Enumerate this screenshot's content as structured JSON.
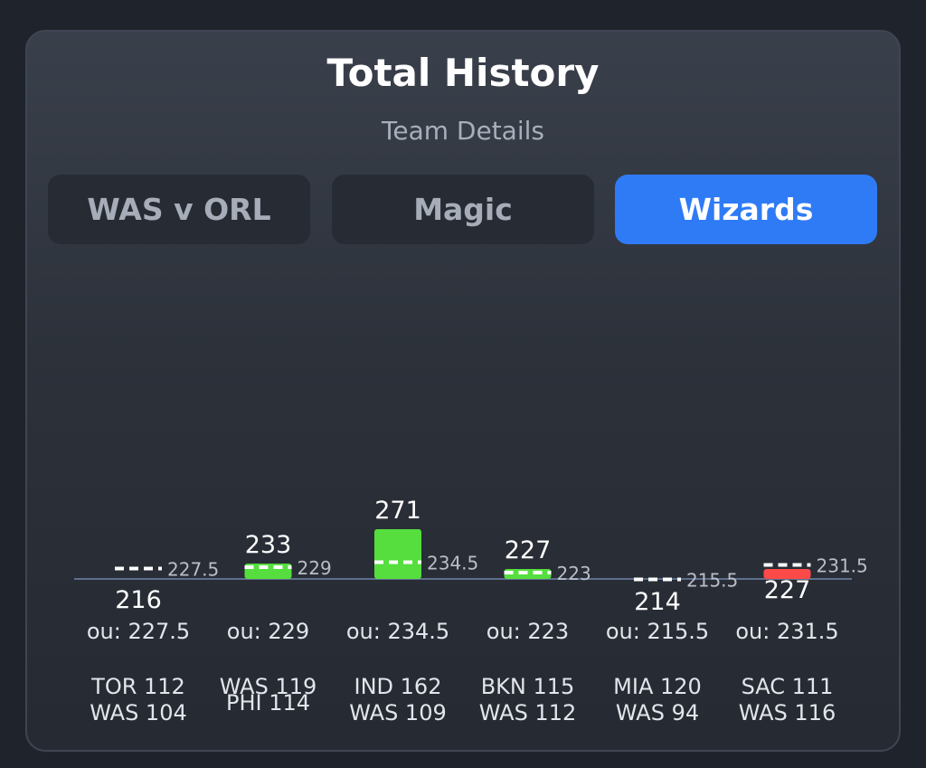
{
  "header": {
    "title": "Total History",
    "subtitle": "Team Details"
  },
  "tabs": [
    {
      "label": "WAS v ORL",
      "active": false
    },
    {
      "label": "Magic",
      "active": false
    },
    {
      "label": "Wizards",
      "active": true
    }
  ],
  "colors": {
    "over": "#55de3e",
    "under": "#fc4a49",
    "accent": "#2f7bf5"
  },
  "chart_data": {
    "type": "bar",
    "title": "",
    "xlabel": "",
    "ylabel": "",
    "ylim": [
      0,
      290
    ],
    "grid": false,
    "categories": [
      "TOR 112 WAS 104",
      "WAS 119 PHI 114",
      "IND 162 WAS 109",
      "BKN 115 WAS 112",
      "MIA 120 WAS 94",
      "SAC 111 WAS 116"
    ],
    "games": [
      {
        "line1": "TOR 112",
        "line2": "WAS 104",
        "total": 216,
        "ou": 227.5,
        "ou_label": "ou: 227.5",
        "result": "under"
      },
      {
        "line1": "WAS 119",
        "line2": "PHI 114",
        "total": 233,
        "ou": 229,
        "ou_label": "ou: 229",
        "result": "over"
      },
      {
        "line1": "IND 162",
        "line2": "WAS 109",
        "total": 271,
        "ou": 234.5,
        "ou_label": "ou: 234.5",
        "result": "over"
      },
      {
        "line1": "BKN 115",
        "line2": "WAS 112",
        "total": 227,
        "ou": 223,
        "ou_label": "ou: 223",
        "result": "over"
      },
      {
        "line1": "MIA 120",
        "line2": "WAS 94",
        "total": 214,
        "ou": 215.5,
        "ou_label": "ou: 215.5",
        "result": "under"
      },
      {
        "line1": "SAC 111",
        "line2": "WAS 116",
        "total": 227,
        "ou": 231.5,
        "ou_label": "ou: 231.5",
        "result": "under"
      }
    ]
  }
}
